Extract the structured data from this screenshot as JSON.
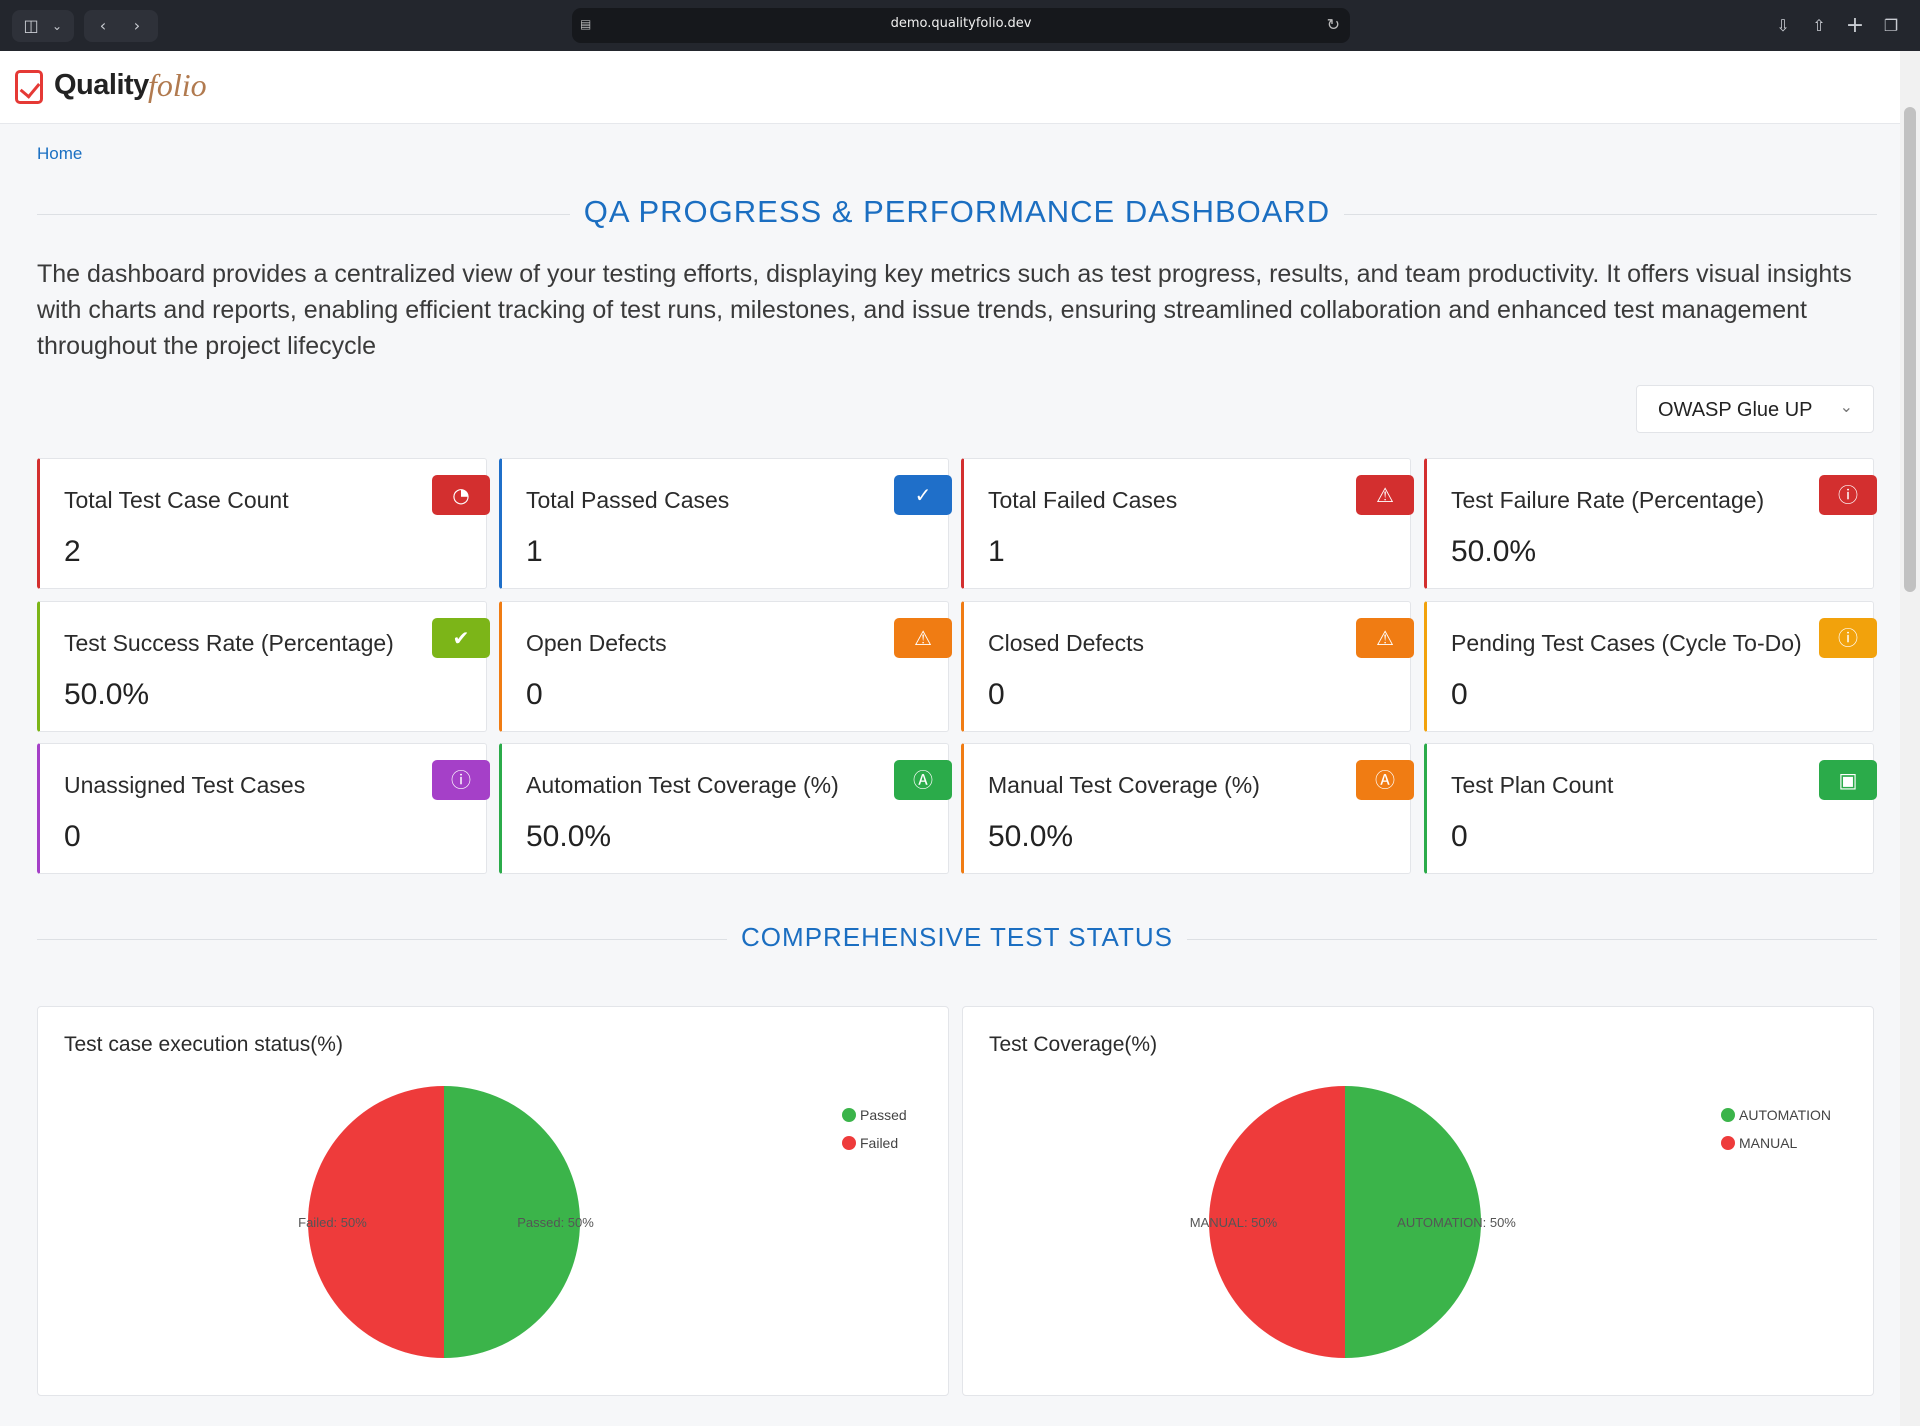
{
  "browser": {
    "url": "demo.qualityfolio.dev"
  },
  "app": {
    "logo_primary": "Quality",
    "logo_secondary": "folio"
  },
  "breadcrumb": "Home",
  "dashboard": {
    "title": "QA PROGRESS & PERFORMANCE DASHBOARD",
    "description": "The dashboard provides a centralized view of your testing efforts, displaying key metrics such as test progress, results, and team productivity. It offers visual insights with charts and reports, enabling efficient tracking of test runs, milestones, and issue trends, ensuring streamlined collaboration and enhanced test management throughout the project lifecycle",
    "project_selected": "OWASP Glue UP"
  },
  "metrics": [
    {
      "label": "Total Test Case Count",
      "value": "2",
      "accent": "#d32f2f",
      "badge_color": "#d32f2f",
      "icon": "gauge-icon"
    },
    {
      "label": "Total Passed Cases",
      "value": "1",
      "accent": "#1f6fc9",
      "badge_color": "#1f6fc9",
      "icon": "check-icon"
    },
    {
      "label": "Total Failed Cases",
      "value": "1",
      "accent": "#d32f2f",
      "badge_color": "#d32f2f",
      "icon": "alert-off-icon"
    },
    {
      "label": "Test Failure Rate (Percentage)",
      "value": "50.0%",
      "accent": "#d32f2f",
      "badge_color": "#d32f2f",
      "icon": "alert-circle-icon"
    },
    {
      "label": "Test Success Rate (Percentage)",
      "value": "50.0%",
      "accent": "#7cb518",
      "badge_color": "#7cb518",
      "icon": "check-circle-icon"
    },
    {
      "label": "Open Defects",
      "value": "0",
      "accent": "#f07c13",
      "badge_color": "#f07c13",
      "icon": "alert-off-icon"
    },
    {
      "label": "Closed Defects",
      "value": "0",
      "accent": "#f07c13",
      "badge_color": "#f07c13",
      "icon": "alert-off-icon"
    },
    {
      "label": "Pending Test Cases (Cycle To-Do)",
      "value": "0",
      "accent": "#f2a20c",
      "badge_color": "#f2a20c",
      "icon": "alert-circle-icon"
    },
    {
      "label": "Unassigned Test Cases",
      "value": "0",
      "accent": "#a540c8",
      "badge_color": "#a540c8",
      "icon": "alert-circle-icon"
    },
    {
      "label": "Automation Test Coverage (%)",
      "value": "50.0%",
      "accent": "#2bab4a",
      "badge_color": "#2bab4a",
      "icon": "automation-icon"
    },
    {
      "label": "Manual Test Coverage (%)",
      "value": "50.0%",
      "accent": "#f07c13",
      "badge_color": "#f07c13",
      "icon": "automation-icon"
    },
    {
      "label": "Test Plan Count",
      "value": "0",
      "accent": "#2bab4a",
      "badge_color": "#2bab4a",
      "icon": "monitor-icon"
    }
  ],
  "status_section": {
    "title": "COMPREHENSIVE TEST STATUS"
  },
  "chart_data": [
    {
      "type": "pie",
      "title": "Test case execution status(%)",
      "slices": [
        {
          "name": "Passed",
          "value": 50,
          "label": "Passed: 50%",
          "color": "#3bb44a"
        },
        {
          "name": "Failed",
          "value": 50,
          "label": "Failed: 50%",
          "color": "#ee3b3b"
        }
      ],
      "legend_position": "top-right"
    },
    {
      "type": "pie",
      "title": "Test Coverage(%)",
      "slices": [
        {
          "name": "AUTOMATION",
          "value": 50,
          "label": "AUTOMATION: 50%",
          "color": "#3bb44a"
        },
        {
          "name": "MANUAL",
          "value": 50,
          "label": "MANUAL: 50%",
          "color": "#ee3b3b"
        }
      ],
      "legend_position": "top-right"
    }
  ]
}
